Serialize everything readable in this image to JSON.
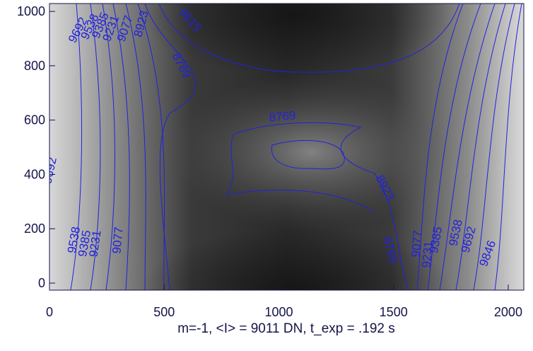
{
  "chart_data": {
    "type": "contour",
    "xlabel": "m=-1, <I> = 9011 DN, t_exp = .192 s",
    "xlim": [
      0,
      2068
    ],
    "ylim": [
      -26,
      1029
    ],
    "xticks": [
      0,
      500,
      1000,
      1500,
      2000
    ],
    "yticks": [
      0,
      200,
      400,
      600,
      800,
      1000
    ],
    "contour_color": "#2222dd",
    "contour_labels": [
      9692,
      9538,
      9385,
      9231,
      9077,
      8923,
      8615,
      8769,
      8769,
      9692,
      9538,
      9385,
      9231,
      9077,
      8923,
      8769,
      9077,
      9231,
      9385,
      9538,
      9692,
      9846
    ]
  }
}
